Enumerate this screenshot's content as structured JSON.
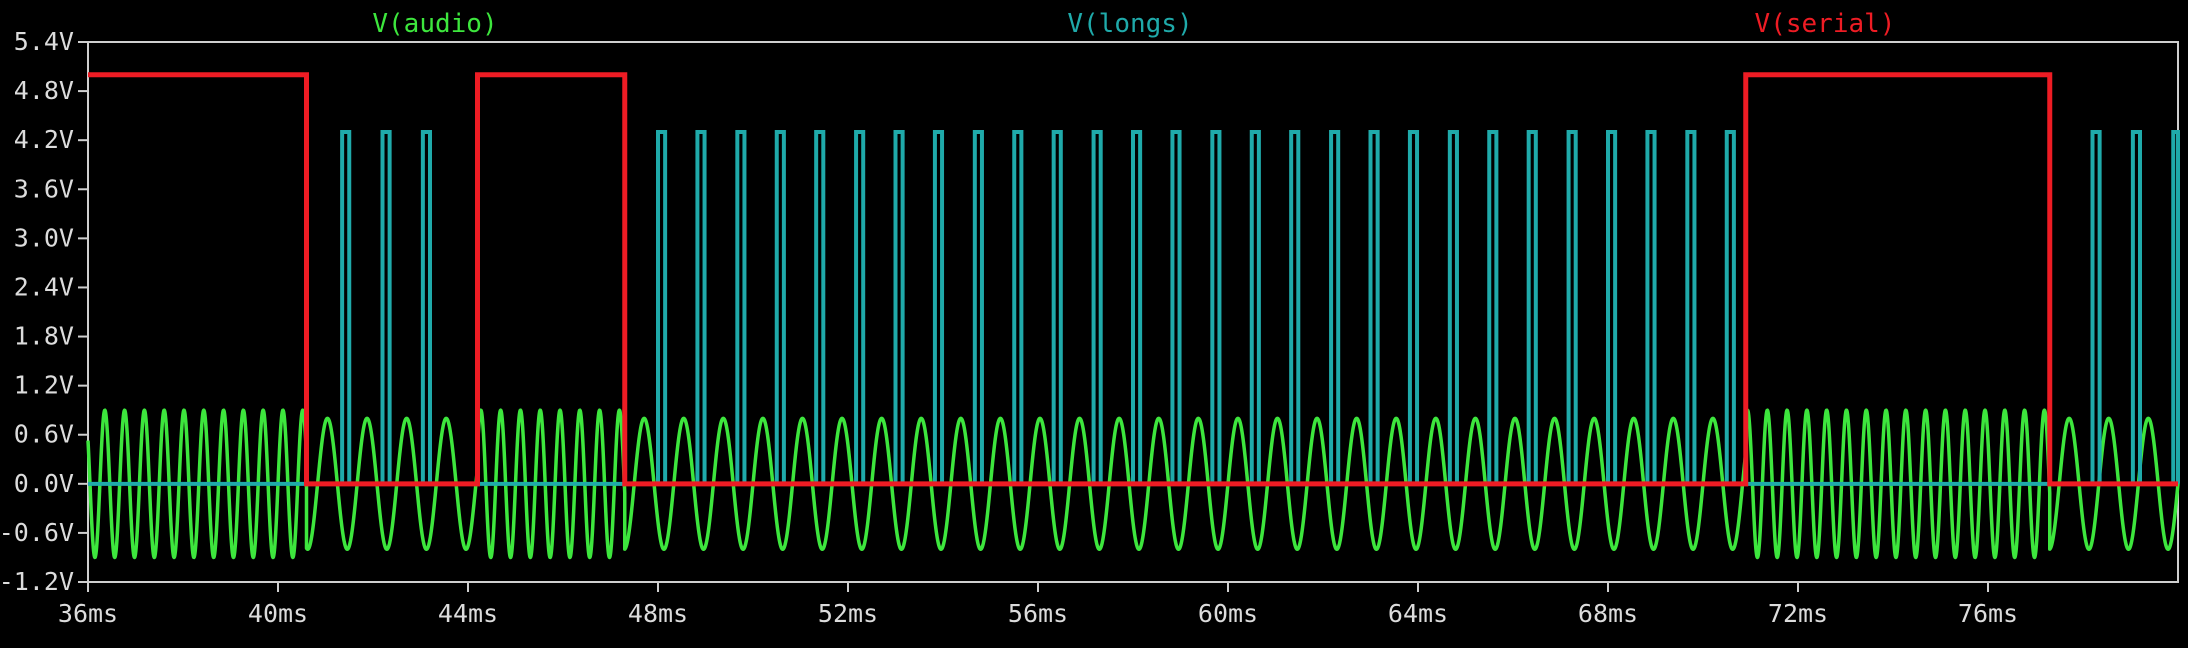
{
  "chart_data": {
    "type": "line",
    "title": "",
    "xlabel": "",
    "ylabel": "",
    "xlim": [
      36,
      80
    ],
    "ylim": [
      -1.2,
      5.4
    ],
    "x_ticks": [
      36,
      40,
      44,
      48,
      52,
      56,
      60,
      64,
      68,
      72,
      76
    ],
    "x_tick_labels": [
      "36ms",
      "40ms",
      "44ms",
      "48ms",
      "52ms",
      "56ms",
      "60ms",
      "64ms",
      "68ms",
      "72ms",
      "76ms"
    ],
    "y_ticks": [
      5.4,
      4.8,
      4.2,
      3.6,
      3.0,
      2.4,
      1.8,
      1.2,
      0.6,
      0.0,
      -0.6,
      -1.2
    ],
    "y_tick_labels": [
      "5.4V",
      "4.8V",
      "4.2V",
      "3.6V",
      "3.0V",
      "2.4V",
      "1.8V",
      "1.2V",
      "0.6V",
      "0.0V",
      "-0.6V",
      "-1.2V"
    ],
    "grid": false,
    "legend_position": "top",
    "series": [
      {
        "name": "V(audio)",
        "color": "#3de63d",
        "segments": [
          {
            "start": 36.0,
            "end": 40.6,
            "frequency_khz": 2.4,
            "min": -0.9,
            "max": 0.9
          },
          {
            "start": 40.6,
            "end": 44.2,
            "frequency_khz": 1.2,
            "min": -0.8,
            "max": 0.8
          },
          {
            "start": 44.2,
            "end": 47.3,
            "frequency_khz": 2.4,
            "min": -0.9,
            "max": 0.9
          },
          {
            "start": 47.3,
            "end": 70.9,
            "frequency_khz": 1.2,
            "min": -0.8,
            "max": 0.8
          },
          {
            "start": 70.9,
            "end": 77.3,
            "frequency_khz": 2.4,
            "min": -0.9,
            "max": 0.9
          },
          {
            "start": 77.3,
            "end": 80.0,
            "frequency_khz": 1.2,
            "min": -0.8,
            "max": 0.8
          }
        ]
      },
      {
        "name": "V(longs)",
        "color": "#1faaaa",
        "baseline": 0.0,
        "pulse_height": 4.3,
        "pulse_width_ms": 0.15,
        "pulse_starts": [
          41.35,
          42.2,
          43.05,
          48.0,
          48.83,
          49.67,
          50.5,
          51.33,
          52.17,
          53.0,
          53.83,
          54.67,
          55.5,
          56.33,
          57.17,
          58.0,
          58.83,
          59.67,
          60.5,
          61.33,
          62.17,
          63.0,
          63.83,
          64.67,
          65.5,
          66.33,
          67.17,
          68.0,
          68.83,
          69.67,
          70.5,
          78.2,
          79.05,
          79.9
        ]
      },
      {
        "name": "V(serial)",
        "color": "#ee1c24",
        "points": [
          [
            36.0,
            5.0
          ],
          [
            40.6,
            5.0
          ],
          [
            40.6,
            0.0
          ],
          [
            44.2,
            0.0
          ],
          [
            44.2,
            5.0
          ],
          [
            47.3,
            5.0
          ],
          [
            47.3,
            0.0
          ],
          [
            70.9,
            0.0
          ],
          [
            70.9,
            5.0
          ],
          [
            77.3,
            5.0
          ],
          [
            77.3,
            0.0
          ],
          [
            80.0,
            0.0
          ]
        ]
      }
    ]
  }
}
